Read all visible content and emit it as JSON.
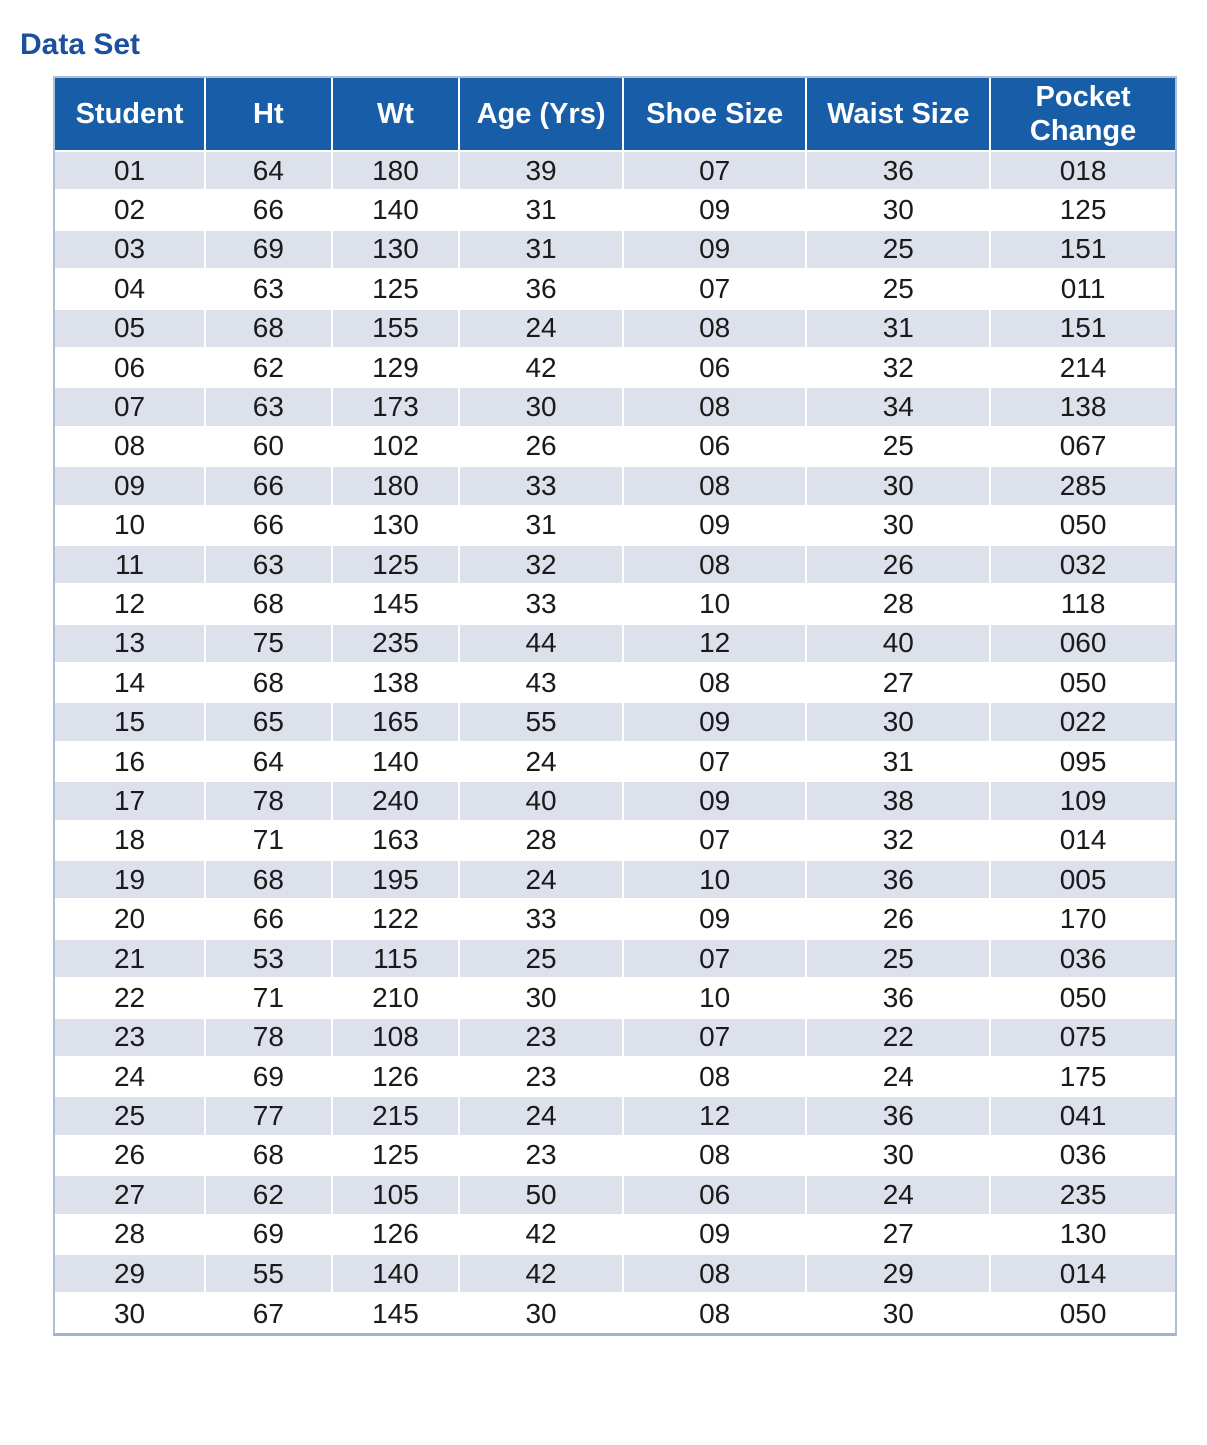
{
  "page": {
    "title": "Data Set"
  },
  "colors": {
    "header_bg": "#175DA8",
    "title_text": "#1C4F9C",
    "stripe_row": "#DCE1EC",
    "white_row": "#FFFFFF",
    "table_border": "#AEBFD9",
    "table_border_bottom": "#9FB3D2",
    "header_text": "#FFFFFF",
    "cell_text": "#1A1A1A"
  },
  "table": {
    "columns": [
      "Student",
      "Ht",
      "Wt",
      "Age (Yrs)",
      "Shoe Size",
      "Waist Size",
      "Pocket Change"
    ],
    "rows": [
      [
        "01",
        "64",
        "180",
        "39",
        "07",
        "36",
        "018"
      ],
      [
        "02",
        "66",
        "140",
        "31",
        "09",
        "30",
        "125"
      ],
      [
        "03",
        "69",
        "130",
        "31",
        "09",
        "25",
        "151"
      ],
      [
        "04",
        "63",
        "125",
        "36",
        "07",
        "25",
        "011"
      ],
      [
        "05",
        "68",
        "155",
        "24",
        "08",
        "31",
        "151"
      ],
      [
        "06",
        "62",
        "129",
        "42",
        "06",
        "32",
        "214"
      ],
      [
        "07",
        "63",
        "173",
        "30",
        "08",
        "34",
        "138"
      ],
      [
        "08",
        "60",
        "102",
        "26",
        "06",
        "25",
        "067"
      ],
      [
        "09",
        "66",
        "180",
        "33",
        "08",
        "30",
        "285"
      ],
      [
        "10",
        "66",
        "130",
        "31",
        "09",
        "30",
        "050"
      ],
      [
        "11",
        "63",
        "125",
        "32",
        "08",
        "26",
        "032"
      ],
      [
        "12",
        "68",
        "145",
        "33",
        "10",
        "28",
        "118"
      ],
      [
        "13",
        "75",
        "235",
        "44",
        "12",
        "40",
        "060"
      ],
      [
        "14",
        "68",
        "138",
        "43",
        "08",
        "27",
        "050"
      ],
      [
        "15",
        "65",
        "165",
        "55",
        "09",
        "30",
        "022"
      ],
      [
        "16",
        "64",
        "140",
        "24",
        "07",
        "31",
        "095"
      ],
      [
        "17",
        "78",
        "240",
        "40",
        "09",
        "38",
        "109"
      ],
      [
        "18",
        "71",
        "163",
        "28",
        "07",
        "32",
        "014"
      ],
      [
        "19",
        "68",
        "195",
        "24",
        "10",
        "36",
        "005"
      ],
      [
        "20",
        "66",
        "122",
        "33",
        "09",
        "26",
        "170"
      ],
      [
        "21",
        "53",
        "115",
        "25",
        "07",
        "25",
        "036"
      ],
      [
        "22",
        "71",
        "210",
        "30",
        "10",
        "36",
        "050"
      ],
      [
        "23",
        "78",
        "108",
        "23",
        "07",
        "22",
        "075"
      ],
      [
        "24",
        "69",
        "126",
        "23",
        "08",
        "24",
        "175"
      ],
      [
        "25",
        "77",
        "215",
        "24",
        "12",
        "36",
        "041"
      ],
      [
        "26",
        "68",
        "125",
        "23",
        "08",
        "30",
        "036"
      ],
      [
        "27",
        "62",
        "105",
        "50",
        "06",
        "24",
        "235"
      ],
      [
        "28",
        "69",
        "126",
        "42",
        "09",
        "27",
        "130"
      ],
      [
        "29",
        "55",
        "140",
        "42",
        "08",
        "29",
        "014"
      ],
      [
        "30",
        "67",
        "145",
        "30",
        "08",
        "30",
        "050"
      ]
    ]
  }
}
